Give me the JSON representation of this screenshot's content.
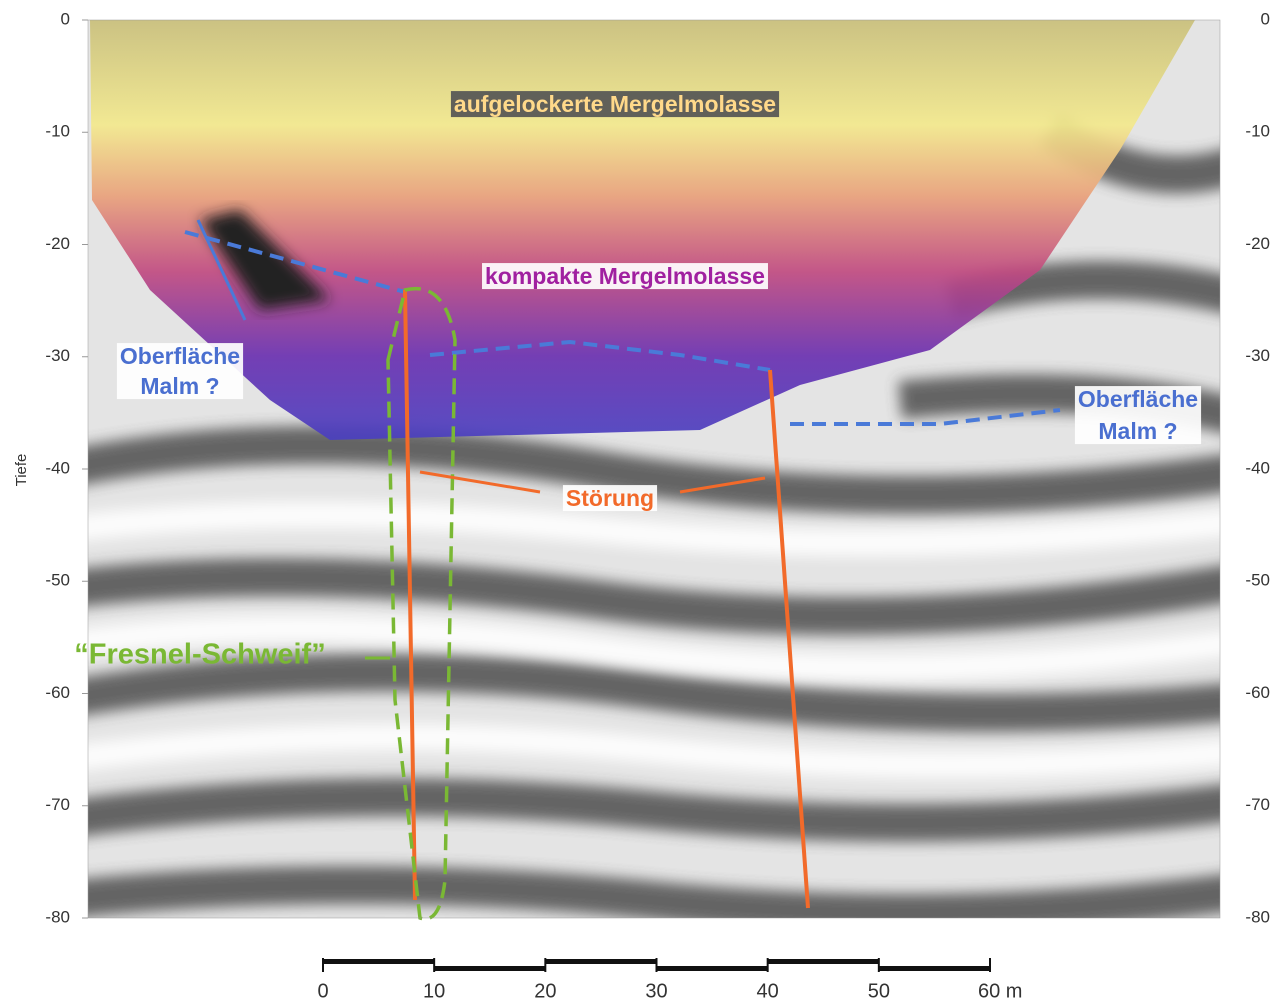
{
  "chart_data": {
    "type": "profile",
    "ylabel": "Tiefe",
    "ylim": [
      0,
      -80
    ],
    "yticks": [
      0,
      -10,
      -20,
      -30,
      -40,
      -50,
      -60,
      -70,
      -80
    ],
    "xlim": [
      0,
      60
    ],
    "xticks": [
      0,
      10,
      20,
      30,
      40,
      50,
      {
        "value": 60,
        "label": "60 m"
      }
    ],
    "annotations": [
      {
        "text": "aufgelockerte Mergelmolasse",
        "color": "#ffd98a"
      },
      {
        "text": "kompakte Mergelmolasse",
        "color": "#a020a0"
      },
      {
        "text": [
          "Oberfläche",
          "Malm ?"
        ],
        "color": "#4a6fd0"
      },
      {
        "text": [
          "Oberfläche",
          "Malm ?"
        ],
        "color": "#4a6fd0"
      },
      {
        "text": "Störung",
        "color": "#f26a2a"
      },
      {
        "text": "“Fresnel-Schweif”",
        "color": "#7ab834"
      }
    ]
  }
}
